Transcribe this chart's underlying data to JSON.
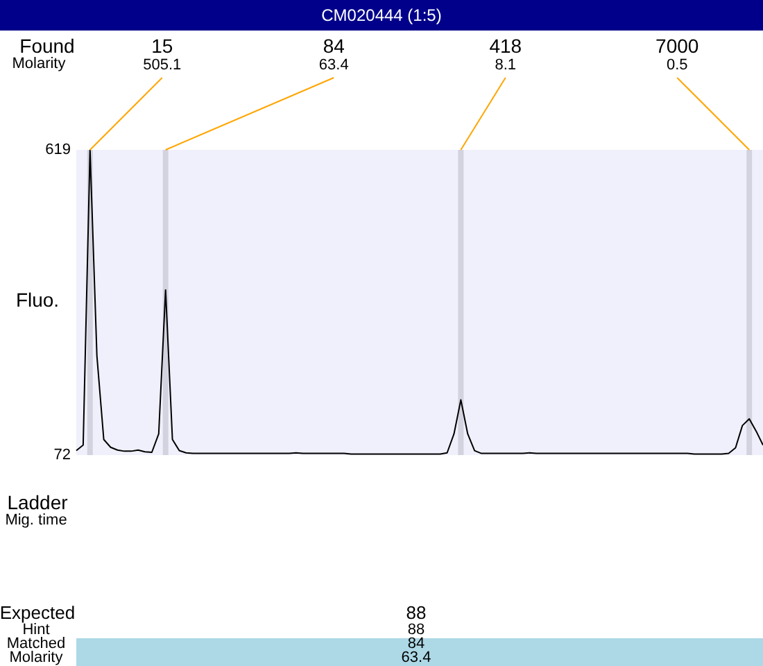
{
  "chart_data": {
    "type": "line",
    "title": "CM020444 (1:5)",
    "ylabel": "Fluo.",
    "ylim": [
      72,
      619
    ],
    "yticks": [
      72,
      619
    ],
    "tick_labels": "y",
    "grid": false,
    "legend": false,
    "marker": "none",
    "line_style": "solid",
    "categories": [
      null,
      null,
      null,
      null,
      null,
      null,
      null,
      null,
      null,
      null,
      null,
      null,
      null,
      null,
      null,
      null,
      null,
      null,
      null,
      null,
      null,
      null,
      null,
      null,
      null,
      null,
      null,
      null,
      null,
      null,
      null,
      null,
      null,
      null,
      null,
      null,
      null,
      null,
      null,
      null,
      null,
      null,
      null,
      null,
      null,
      null,
      null,
      null,
      null,
      null,
      null,
      null,
      null,
      null,
      null,
      null,
      null,
      null,
      null,
      null,
      null,
      null,
      null,
      null,
      null,
      null,
      null,
      null,
      null,
      null,
      null,
      null,
      null,
      null,
      null,
      null,
      null,
      null,
      null,
      null,
      null,
      null,
      null,
      null,
      null,
      null,
      null,
      null,
      null,
      null,
      null,
      null,
      null,
      null,
      null,
      null,
      null,
      null,
      null,
      null,
      null
    ],
    "series": [
      {
        "color": "#000000",
        "values": [
          80,
          90,
          619,
          250,
          100,
          86,
          81,
          79,
          79,
          81,
          78,
          77,
          110,
          368,
          100,
          80,
          76,
          75,
          75,
          75,
          75,
          75,
          75,
          75,
          75,
          75,
          75,
          75,
          75,
          75,
          75,
          75,
          76,
          75,
          75,
          75,
          75,
          75,
          75,
          75,
          74,
          74,
          74,
          74,
          74,
          74,
          74,
          74,
          74,
          74,
          74,
          74,
          74,
          74,
          76,
          110,
          171,
          110,
          80,
          75,
          75,
          75,
          75,
          75,
          75,
          75,
          76,
          75,
          75,
          75,
          75,
          75,
          75,
          75,
          75,
          75,
          75,
          75,
          75,
          75,
          75,
          75,
          75,
          75,
          75,
          75,
          75,
          75,
          75,
          75,
          74,
          74,
          74,
          74,
          74,
          75,
          85,
          125,
          137,
          115,
          90
        ]
      }
    ],
    "annotations": [
      "15",
      "505.1",
      "84",
      "63.4",
      "418",
      "8.1",
      "7000",
      "0.5",
      "Found",
      "Molarity",
      "Ladder",
      "Mig. time",
      "Expected",
      "Hint",
      "Matched",
      "Molarity",
      "88",
      "88",
      "84",
      "63.4"
    ]
  }
}
